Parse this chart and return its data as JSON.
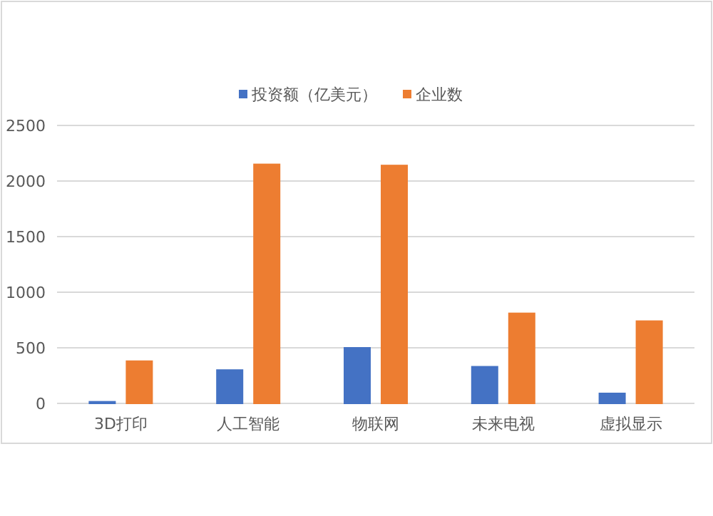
{
  "chart_data": {
    "type": "bar",
    "categories": [
      "3D打印",
      "人工智能",
      "物联网",
      "未来电视",
      "虚拟显示"
    ],
    "series": [
      {
        "name": "投资额（亿美元）",
        "color": "#4472c4",
        "values": [
          15,
          300,
          500,
          330,
          90
        ]
      },
      {
        "name": "企业数",
        "color": "#ed7d31",
        "values": [
          380,
          2150,
          2140,
          810,
          740
        ]
      }
    ],
    "ylim": [
      0,
      2500
    ],
    "yticks": [
      0,
      500,
      1000,
      1500,
      2000,
      2500
    ],
    "grid": "y",
    "legend": "top"
  }
}
